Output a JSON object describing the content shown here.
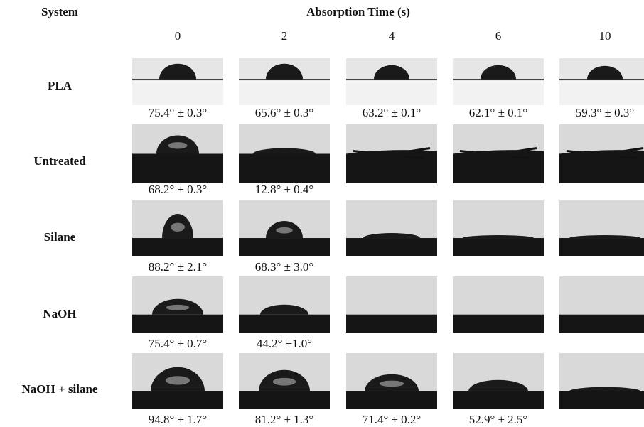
{
  "header": {
    "system": "System",
    "title": "Absorption Time (s)",
    "times": [
      "0",
      "2",
      "4",
      "6",
      "10"
    ]
  },
  "rows": [
    {
      "label": "PLA",
      "angles": [
        "75.4° ± 0.3°",
        "65.6° ± 0.3°",
        "63.2° ± 0.1°",
        "62.1° ± 0.1°",
        "59.3° ± 0.3°"
      ]
    },
    {
      "label": "Untreated",
      "angles": [
        "68.2° ± 0.3°",
        "12.8° ± 0.4°"
      ]
    },
    {
      "label": "Silane",
      "angles": [
        "88.2° ± 2.1°",
        "68.3° ± 3.0°"
      ]
    },
    {
      "label": "NaOH",
      "angles": [
        "75.4° ± 0.7°",
        "44.2° ±1.0°"
      ]
    },
    {
      "label": "NaOH + silane",
      "angles": [
        "94.8° ± 1.7°",
        "81.2° ± 1.3°",
        "71.4° ± 0.2°",
        "52.9° ± 2.5°"
      ]
    }
  ]
}
